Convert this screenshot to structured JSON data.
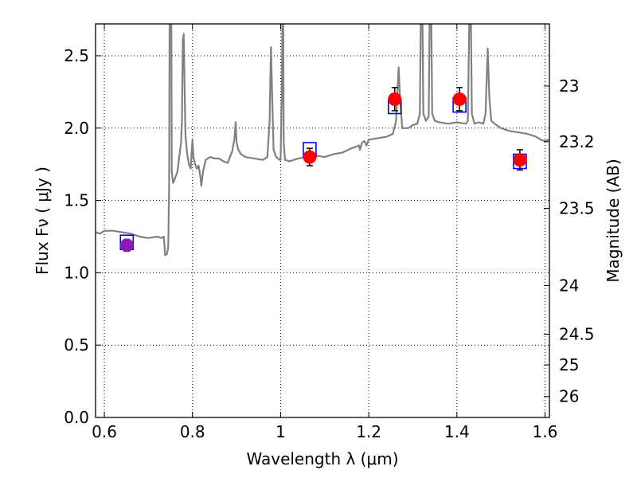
{
  "chart_data": {
    "type": "scatter",
    "xlabel": "Wavelength  λ (μm)",
    "ylabel": "Flux  Fν  ( μJy )",
    "y2label": "Magnitude (AB)",
    "xlim": [
      0.58,
      1.61
    ],
    "ylim": [
      0.0,
      2.72
    ],
    "grid": true,
    "x_ticks": [
      {
        "value": 0.6,
        "label": "0.6"
      },
      {
        "value": 0.8,
        "label": "0.8"
      },
      {
        "value": 1.0,
        "label": "1"
      },
      {
        "value": 1.2,
        "label": "1.2"
      },
      {
        "value": 1.4,
        "label": "1.4"
      },
      {
        "value": 1.6,
        "label": "1.6"
      }
    ],
    "y_ticks": [
      {
        "value": 0.0,
        "label": "0.0"
      },
      {
        "value": 0.5,
        "label": "0.5"
      },
      {
        "value": 1.0,
        "label": "1.0"
      },
      {
        "value": 1.5,
        "label": "1.5"
      },
      {
        "value": 2.0,
        "label": "2.0"
      },
      {
        "value": 2.5,
        "label": "2.5"
      }
    ],
    "y2_ticks": [
      {
        "mag": 23,
        "label": "23"
      },
      {
        "mag": 23.2,
        "label": "23.2"
      },
      {
        "mag": 23.5,
        "label": "23.5"
      },
      {
        "mag": 24,
        "label": "24"
      },
      {
        "mag": 24.5,
        "label": "24.5"
      },
      {
        "mag": 25,
        "label": "25"
      },
      {
        "mag": 26,
        "label": "26"
      }
    ],
    "template_spectrum": {
      "color": "#808080",
      "points": [
        [
          0.58,
          1.28
        ],
        [
          0.59,
          1.27
        ],
        [
          0.6,
          1.29
        ],
        [
          0.62,
          1.29
        ],
        [
          0.64,
          1.28
        ],
        [
          0.66,
          1.27
        ],
        [
          0.68,
          1.25
        ],
        [
          0.7,
          1.24
        ],
        [
          0.72,
          1.25
        ],
        [
          0.73,
          1.24
        ],
        [
          0.735,
          1.25
        ],
        [
          0.738,
          1.12
        ],
        [
          0.742,
          1.13
        ],
        [
          0.745,
          1.18
        ],
        [
          0.747,
          1.6
        ],
        [
          0.748,
          2.72
        ],
        [
          0.752,
          2.72
        ],
        [
          0.753,
          1.7
        ],
        [
          0.756,
          1.62
        ],
        [
          0.76,
          1.65
        ],
        [
          0.766,
          1.7
        ],
        [
          0.77,
          1.8
        ],
        [
          0.774,
          1.9
        ],
        [
          0.776,
          2.05
        ],
        [
          0.778,
          2.6
        ],
        [
          0.78,
          2.65
        ],
        [
          0.782,
          2.3
        ],
        [
          0.784,
          1.95
        ],
        [
          0.788,
          1.82
        ],
        [
          0.792,
          1.75
        ],
        [
          0.796,
          1.72
        ],
        [
          0.8,
          1.92
        ],
        [
          0.802,
          1.8
        ],
        [
          0.806,
          1.75
        ],
        [
          0.81,
          1.72
        ],
        [
          0.814,
          1.74
        ],
        [
          0.818,
          1.66
        ],
        [
          0.82,
          1.6
        ],
        [
          0.824,
          1.7
        ],
        [
          0.83,
          1.78
        ],
        [
          0.84,
          1.8
        ],
        [
          0.85,
          1.79
        ],
        [
          0.86,
          1.79
        ],
        [
          0.87,
          1.77
        ],
        [
          0.88,
          1.76
        ],
        [
          0.885,
          1.8
        ],
        [
          0.89,
          1.84
        ],
        [
          0.895,
          1.92
        ],
        [
          0.898,
          2.04
        ],
        [
          0.9,
          1.9
        ],
        [
          0.904,
          1.85
        ],
        [
          0.91,
          1.82
        ],
        [
          0.92,
          1.8
        ],
        [
          0.94,
          1.79
        ],
        [
          0.96,
          1.78
        ],
        [
          0.97,
          1.8
        ],
        [
          0.975,
          2.05
        ],
        [
          0.978,
          2.56
        ],
        [
          0.981,
          2.2
        ],
        [
          0.984,
          1.85
        ],
        [
          0.99,
          1.8
        ],
        [
          0.998,
          1.78
        ],
        [
          1.0,
          1.78
        ],
        [
          1.003,
          2.3
        ],
        [
          1.004,
          2.72
        ],
        [
          1.006,
          2.72
        ],
        [
          1.007,
          1.9
        ],
        [
          1.01,
          1.78
        ],
        [
          1.02,
          1.77
        ],
        [
          1.04,
          1.79
        ],
        [
          1.06,
          1.8
        ],
        [
          1.08,
          1.81
        ],
        [
          1.1,
          1.8
        ],
        [
          1.12,
          1.82
        ],
        [
          1.14,
          1.83
        ],
        [
          1.16,
          1.86
        ],
        [
          1.17,
          1.87
        ],
        [
          1.178,
          1.88
        ],
        [
          1.18,
          1.85
        ],
        [
          1.185,
          1.9
        ],
        [
          1.19,
          1.91
        ],
        [
          1.195,
          1.88
        ],
        [
          1.2,
          1.92
        ],
        [
          1.22,
          1.93
        ],
        [
          1.24,
          1.94
        ],
        [
          1.255,
          1.96
        ],
        [
          1.262,
          2.05
        ],
        [
          1.266,
          2.3
        ],
        [
          1.268,
          2.42
        ],
        [
          1.271,
          2.2
        ],
        [
          1.276,
          2.0
        ],
        [
          1.29,
          2.0
        ],
        [
          1.3,
          2.02
        ],
        [
          1.31,
          2.03
        ],
        [
          1.316,
          2.1
        ],
        [
          1.318,
          2.72
        ],
        [
          1.322,
          2.72
        ],
        [
          1.324,
          2.1
        ],
        [
          1.33,
          2.05
        ],
        [
          1.336,
          2.08
        ],
        [
          1.338,
          2.72
        ],
        [
          1.342,
          2.72
        ],
        [
          1.344,
          2.1
        ],
        [
          1.35,
          2.05
        ],
        [
          1.36,
          2.04
        ],
        [
          1.38,
          2.03
        ],
        [
          1.4,
          2.04
        ],
        [
          1.42,
          2.03
        ],
        [
          1.425,
          2.05
        ],
        [
          1.428,
          2.72
        ],
        [
          1.432,
          2.72
        ],
        [
          1.434,
          2.1
        ],
        [
          1.44,
          2.03
        ],
        [
          1.45,
          2.04
        ],
        [
          1.46,
          2.03
        ],
        [
          1.465,
          2.1
        ],
        [
          1.47,
          2.55
        ],
        [
          1.474,
          2.2
        ],
        [
          1.478,
          2.05
        ],
        [
          1.49,
          2.02
        ],
        [
          1.5,
          2.0
        ],
        [
          1.52,
          1.98
        ],
        [
          1.54,
          1.97
        ],
        [
          1.56,
          1.96
        ],
        [
          1.58,
          1.94
        ],
        [
          1.59,
          1.92
        ],
        [
          1.6,
          1.91
        ],
        [
          1.61,
          1.92
        ]
      ]
    },
    "observed_points": [
      {
        "x": 0.651,
        "y": 1.19,
        "err": 0.04,
        "color": "#8e1ab5"
      },
      {
        "x": 1.066,
        "y": 1.8,
        "err": 0.06,
        "color": "#ff0000"
      },
      {
        "x": 1.259,
        "y": 2.2,
        "err": 0.08,
        "color": "#ff0000"
      },
      {
        "x": 1.406,
        "y": 2.2,
        "err": 0.08,
        "color": "#ff0000"
      },
      {
        "x": 1.543,
        "y": 1.78,
        "err": 0.07,
        "color": "#ff0000"
      }
    ],
    "model_points": [
      {
        "x": 0.651,
        "y": 1.21
      },
      {
        "x": 1.066,
        "y": 1.85
      },
      {
        "x": 1.259,
        "y": 2.15
      },
      {
        "x": 1.406,
        "y": 2.16
      },
      {
        "x": 1.543,
        "y": 1.77
      }
    ],
    "model_marker_color": "#0000ff"
  }
}
